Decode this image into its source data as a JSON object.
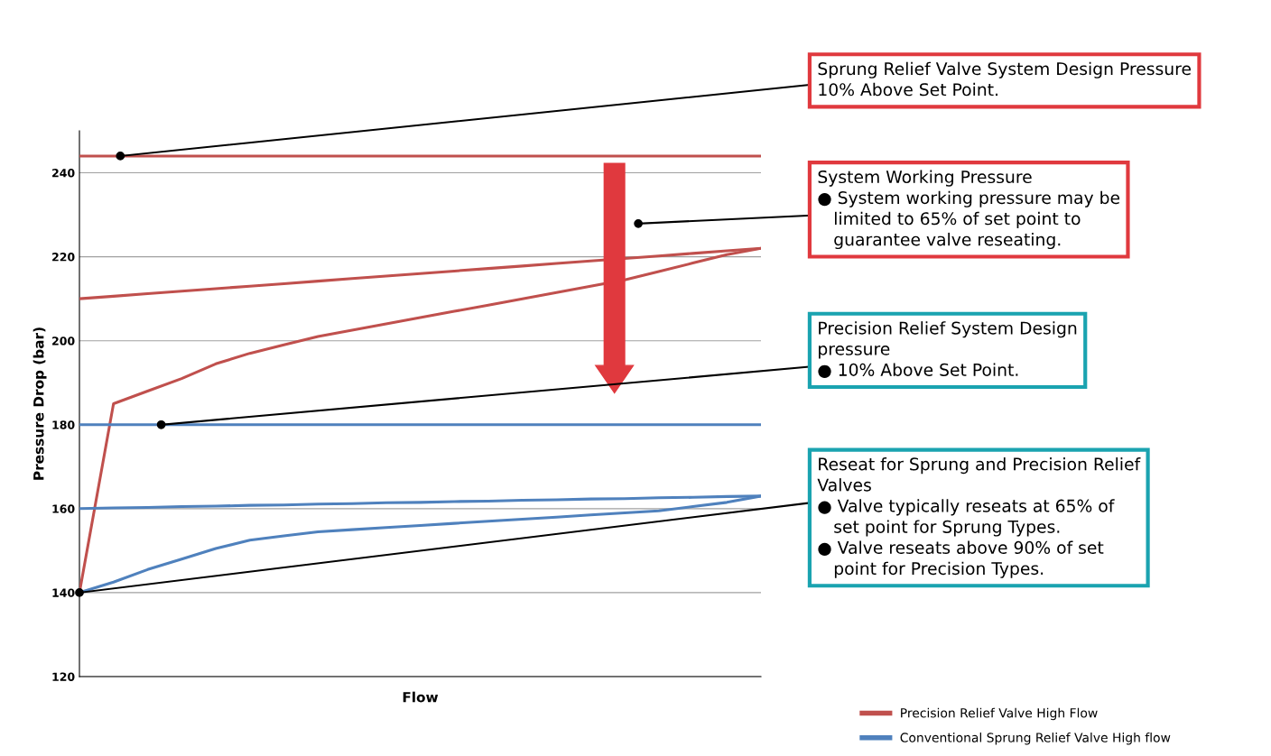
{
  "chart_data": {
    "type": "line",
    "xlabel": "Flow",
    "ylabel": "Pressure Drop (bar)",
    "categories": [
      null,
      null,
      null,
      null,
      null,
      null,
      null,
      null,
      null,
      null,
      null,
      null,
      null,
      null,
      null,
      null,
      null,
      null,
      null,
      null,
      null
    ],
    "series": [
      {
        "name": "Precision Relief Valve High Flow",
        "color": "#c0504d",
        "values": [
          210,
          210.6,
          211.2,
          211.8,
          212.4,
          213,
          213.6,
          214.2,
          214.8,
          215.4,
          216,
          216.6,
          217.2,
          217.8,
          218.4,
          219,
          219.6,
          220.2,
          220.8,
          221.4,
          222
        ]
      },
      {
        "color": "#c0504d",
        "values": [
          140,
          185,
          188,
          191,
          194.5,
          197,
          199,
          201,
          202.5,
          204,
          205.5,
          207,
          208.5,
          210,
          211.5,
          213,
          214.5,
          216.5,
          218.5,
          220.5,
          222
        ]
      },
      {
        "name": "Conventional Sprung Relief Valve High flow",
        "color": "#4f81bd",
        "values": [
          160,
          160.2,
          160.3,
          160.5,
          160.6,
          160.8,
          160.9,
          161.1,
          161.2,
          161.4,
          161.5,
          161.7,
          161.8,
          162,
          162.1,
          162.3,
          162.4,
          162.6,
          162.7,
          162.9,
          163
        ]
      },
      {
        "color": "#4f81bd",
        "values": [
          140,
          142.5,
          145.5,
          148,
          150.5,
          152.5,
          153.5,
          154.5,
          155,
          155.5,
          156,
          156.5,
          157,
          157.5,
          158,
          158.5,
          159,
          159.5,
          160.5,
          161.5,
          163
        ]
      }
    ],
    "ylim": [
      120,
      250
    ],
    "yticks": [
      120,
      140,
      160,
      180,
      200,
      220,
      240
    ],
    "grid": "y",
    "legend": "bottom right",
    "tick_labels": "y",
    "ref_lines": [
      {
        "axis": "y",
        "value": 244,
        "color": "#c0504d"
      },
      {
        "axis": "y",
        "value": 180,
        "color": "#4f81bd"
      }
    ],
    "annotations": [
      "Sprung Relief Valve System Design Pressure\n10% Above Set Point.",
      "System Working Pressure\n● System working pressure may be\n   limited to 65% of set point to\n   guarantee valve reseating.",
      "Precision Relief System Design\npressure\n● 10% Above Set Point.",
      "Reseat for Sprung and Precision Relief\nValves\n● Valve typically reseats at 65% of\n   set point for Sprung Types.\n● Valve reseats above 90% of set\n   point for Precision Types."
    ]
  }
}
